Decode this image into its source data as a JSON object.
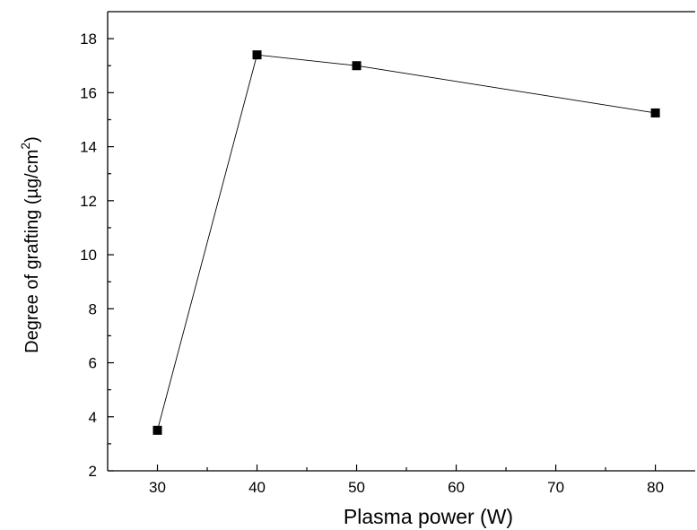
{
  "chart_data": {
    "type": "line",
    "title": "",
    "xlabel": "Plasma power (W)",
    "ylabel": "Degree of grafting (µg/cm",
    "ylabel_superscript": "2",
    "ylabel_close": ")",
    "xlim": [
      25,
      84
    ],
    "ylim": [
      2,
      19
    ],
    "x_ticks": [
      30,
      40,
      50,
      60,
      70,
      80
    ],
    "y_ticks": [
      2,
      4,
      6,
      8,
      10,
      12,
      14,
      16,
      18
    ],
    "grid": false,
    "legend": "none",
    "marker": "square",
    "color": "#000000",
    "series": [
      {
        "x": [
          30,
          40,
          50,
          80
        ],
        "y": [
          3.5,
          17.4,
          17.0,
          15.25
        ]
      }
    ]
  }
}
